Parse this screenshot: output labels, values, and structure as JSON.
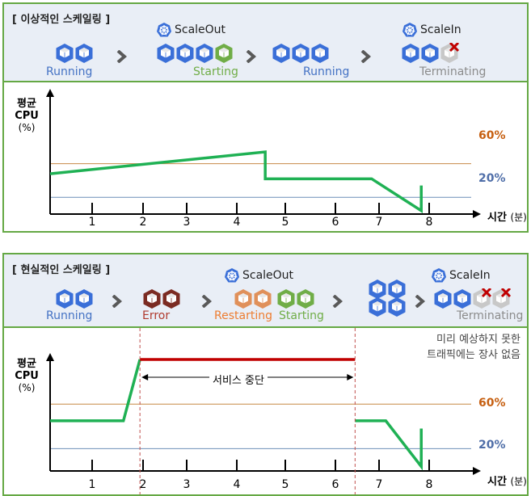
{
  "icons": {
    "pod": "pod-hexagon-icon",
    "k8s": "kubernetes-helm-icon",
    "chevron": "chevron-right-icon",
    "x": "x-mark-icon"
  },
  "colors": {
    "blue": "#4472c4",
    "green": "#70ad47",
    "orange": "#ed7d31",
    "dark_red": "#7b2b22",
    "gray": "#bfbfbf",
    "line_green": "#1fb154",
    "line_red": "#c00000",
    "ref_60": "#c78a47",
    "ref_20": "#6d8fb8",
    "border": "#65a844"
  },
  "panel1": {
    "title": "[ 이상적인 스케일링 ]",
    "events": {
      "scale_out": "ScaleOut",
      "scale_in": "ScaleIn"
    },
    "states": [
      "Running",
      "Starting",
      "Running",
      "Terminating"
    ],
    "chart": {
      "ylabel_kr": "평균",
      "ylabel_cpu": "CPU",
      "ylabel_unit": "(%)",
      "xlabel_kr": "시간",
      "xlabel_unit": "(분)",
      "ticks": [
        "1",
        "2",
        "3",
        "4",
        "5",
        "6",
        "7",
        "8"
      ],
      "ref_levels": [
        {
          "label": "60%",
          "value": 60
        },
        {
          "label": "20%",
          "value": 20
        }
      ]
    }
  },
  "panel2": {
    "title": "[ 현실적인 스케일링 ]",
    "events": {
      "scale_out": "ScaleOut",
      "scale_in": "ScaleIn"
    },
    "states": [
      "Running",
      "Error",
      "Restarting",
      "Starting",
      "Terminating"
    ],
    "note_line1": "미리 예상하지 못한",
    "note_line2": "트래픽에는 장사 없음",
    "outage_label": "서비스 중단",
    "chart": {
      "ylabel_kr": "평균",
      "ylabel_cpu": "CPU",
      "ylabel_unit": "(%)",
      "xlabel_kr": "시간",
      "xlabel_unit": "(분)",
      "ticks": [
        "1",
        "2",
        "3",
        "4",
        "5",
        "6",
        "7",
        "8"
      ],
      "ref_levels": [
        {
          "label": "60%",
          "value": 60
        },
        {
          "label": "20%",
          "value": 20
        }
      ]
    }
  },
  "chart_data": [
    {
      "type": "line",
      "xlabel": "시간 (분)",
      "ylabel": "평균 CPU (%)",
      "x_ticks": [
        1,
        2,
        3,
        4,
        5,
        6,
        7,
        8
      ],
      "reference_lines": [
        60,
        20
      ],
      "series": [
        {
          "points": [
            [
              0.0,
              48
            ],
            [
              4.55,
              74
            ],
            [
              4.55,
              42
            ],
            [
              6.8,
              42
            ],
            [
              7.85,
              4
            ],
            [
              7.85,
              34
            ]
          ]
        }
      ]
    },
    {
      "type": "line",
      "xlabel": "시간 (분)",
      "ylabel": "평균 CPU (%)",
      "x_ticks": [
        1,
        2,
        3,
        4,
        5,
        6,
        7,
        8
      ],
      "reference_lines": [
        60,
        20
      ],
      "series": [
        {
          "points": [
            [
              0.0,
              45
            ],
            [
              1.55,
              45
            ],
            [
              1.9,
              100
            ]
          ]
        },
        {
          "points": [
            [
              1.9,
              100
            ],
            [
              6.45,
              100
            ]
          ]
        },
        {
          "points": [
            [
              6.45,
              45
            ],
            [
              7.1,
              45
            ],
            [
              7.85,
              4
            ],
            [
              7.85,
              38
            ]
          ]
        }
      ],
      "outage_range": [
        1.9,
        6.45
      ]
    }
  ]
}
